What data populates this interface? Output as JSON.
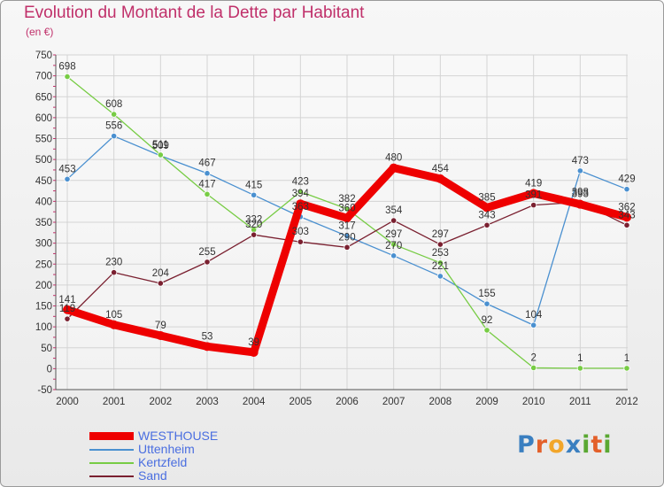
{
  "header": {
    "title": "Evolution du Montant de la Dette par Habitant",
    "subtitle": "(en €)"
  },
  "colors": {
    "title": "#c0306a",
    "axis_text": "#333333",
    "grid": "#d4d4d4",
    "tick_marks": "#c0306a"
  },
  "logo": {
    "letters": [
      "P",
      "r",
      "o",
      "x",
      "i",
      "t",
      "i"
    ],
    "colors": [
      "#3a7fc0",
      "#e3602a",
      "#f2a62a",
      "#3a7fc0",
      "#5aa832",
      "#e3602a",
      "#5aa832"
    ]
  },
  "chart_data": {
    "type": "line",
    "title": "Evolution du Montant de la Dette par Habitant",
    "subtitle": "(en €)",
    "xlabel": "",
    "ylabel": "",
    "x": [
      "2000",
      "2001",
      "2002",
      "2003",
      "2004",
      "2005",
      "2006",
      "2007",
      "2008",
      "2009",
      "2010",
      "2011",
      "2012"
    ],
    "ylim": [
      -50,
      750
    ],
    "yticks": [
      -50,
      0,
      50,
      100,
      150,
      200,
      250,
      300,
      350,
      400,
      450,
      500,
      550,
      600,
      650,
      700,
      750
    ],
    "grid": true,
    "legend": "bottom-left",
    "series": [
      {
        "name": "WESTHOUSE",
        "color": "#ee0000",
        "width": 9,
        "values": [
          141,
          105,
          79,
          53,
          39,
          394,
          360,
          480,
          454,
          385,
          419,
          393,
          362
        ],
        "labels": [
          "141",
          "105",
          "79",
          "53",
          "39",
          "394",
          "360",
          "480",
          "454",
          "385",
          "419",
          "393",
          "362"
        ]
      },
      {
        "name": "Uttenheim",
        "color": "#4a90d0",
        "width": 1.3,
        "values": [
          453,
          556,
          509,
          467,
          415,
          363,
          317,
          270,
          221,
          155,
          104,
          473,
          429
        ],
        "labels": [
          "453",
          "556",
          "509",
          "467",
          "415",
          "363",
          "317",
          "270",
          "221",
          "155",
          "104",
          "473",
          "429"
        ]
      },
      {
        "name": "Kertzfeld",
        "color": "#77cc44",
        "width": 1.3,
        "values": [
          698,
          608,
          511,
          417,
          332,
          423,
          382,
          297,
          253,
          92,
          2,
          1,
          1
        ],
        "labels": [
          "698",
          "608",
          "511",
          "417",
          "332",
          "423",
          "382",
          "297",
          "253",
          "92",
          "2",
          "1",
          "1"
        ]
      },
      {
        "name": "Sand",
        "color": "#7a2030",
        "width": 1.3,
        "values": [
          119,
          230,
          204,
          255,
          320,
          303,
          290,
          354,
          297,
          343,
          391,
          398,
          343
        ],
        "labels": [
          "119",
          "230",
          "204",
          "255",
          "320",
          "303",
          "290",
          "354",
          "297",
          "343",
          "391",
          "398",
          "343"
        ]
      }
    ]
  }
}
